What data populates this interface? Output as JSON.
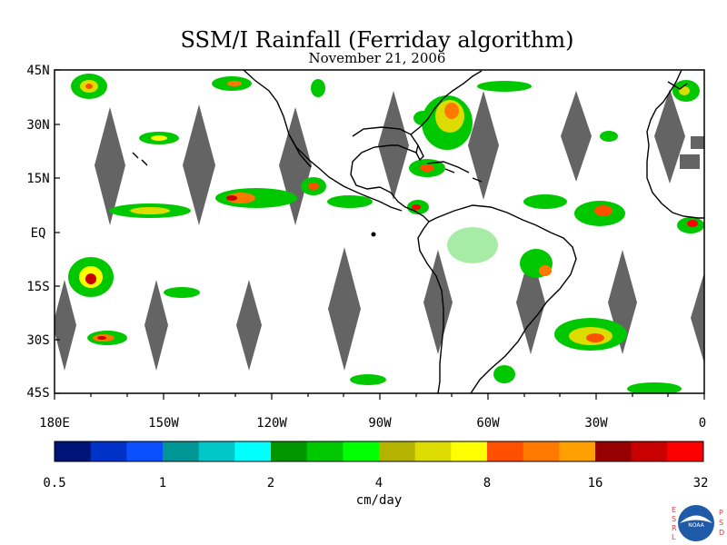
{
  "title": "SSM/I Rainfall (Ferriday algorithm)",
  "date": "November 21, 2006",
  "map": {
    "lat_labels": [
      "45N",
      "30N",
      "15N",
      "EQ",
      "15S",
      "30S",
      "45S"
    ],
    "lon_labels": [
      "180E",
      "150W",
      "120W",
      "90W",
      "60W",
      "30W",
      "0"
    ],
    "land_color": "#ffffff",
    "missing_swath_color": "#646464",
    "coastline_color": "#000000"
  },
  "colorbar": {
    "unit_label": "cm/day",
    "tick_labels": [
      "0.5",
      "1",
      "2",
      "4",
      "8",
      "16",
      "32"
    ],
    "colors": [
      "#001478",
      "#0032c8",
      "#0a50ff",
      "#009696",
      "#00c8c8",
      "#00ffff",
      "#009600",
      "#00c800",
      "#00ff00",
      "#b4b400",
      "#dcdc00",
      "#ffff00",
      "#ff5000",
      "#ff7800",
      "#ffa000",
      "#960000",
      "#c80000",
      "#ff0000"
    ]
  },
  "logo": {
    "left_letters": [
      "E",
      "S",
      "R",
      "L"
    ],
    "right_letters": [
      "P",
      "S",
      "D"
    ],
    "badge_text": "NOAA"
  }
}
